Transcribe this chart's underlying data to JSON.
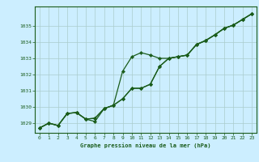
{
  "x": [
    0,
    1,
    2,
    3,
    4,
    5,
    6,
    7,
    8,
    9,
    10,
    11,
    12,
    13,
    14,
    15,
    16,
    17,
    18,
    19,
    20,
    21,
    22,
    23
  ],
  "line1": [
    1028.7,
    1029.0,
    1028.85,
    1029.6,
    1029.65,
    1029.25,
    1029.1,
    1029.9,
    1030.1,
    1030.5,
    1031.15,
    1031.15,
    1031.4,
    1032.5,
    1033.0,
    1033.1,
    1033.2,
    1033.85,
    1034.1,
    1034.45,
    1034.85,
    1035.05,
    1035.4,
    1035.75
  ],
  "line2": [
    1028.7,
    1029.0,
    1028.85,
    1029.6,
    1029.65,
    1029.25,
    1029.3,
    1029.9,
    1030.1,
    1032.2,
    1033.1,
    1033.35,
    1033.2,
    1033.0,
    1033.0,
    1033.1,
    1033.2,
    1033.85,
    1034.1,
    1034.45,
    1034.85,
    1035.05,
    1035.4,
    1035.75
  ],
  "line3": [
    1028.7,
    1029.0,
    1028.85,
    1029.6,
    1029.65,
    1029.25,
    1029.3,
    1029.9,
    1030.1,
    1030.5,
    1031.15,
    1031.15,
    1031.4,
    1032.5,
    1033.0,
    1033.1,
    1033.2,
    1033.85,
    1034.1,
    1034.45,
    1034.85,
    1035.05,
    1035.4,
    1035.75
  ],
  "line_color": "#1a5c1a",
  "bg_color": "#cceeff",
  "grid_color": "#aacccc",
  "title": "Graphe pression niveau de la mer (hPa)",
  "ylabel_ticks": [
    1029,
    1030,
    1031,
    1032,
    1033,
    1034,
    1035
  ],
  "xticks": [
    0,
    1,
    2,
    3,
    4,
    5,
    6,
    7,
    8,
    9,
    10,
    11,
    12,
    13,
    14,
    15,
    16,
    17,
    18,
    19,
    20,
    21,
    22,
    23
  ],
  "ylim": [
    1028.4,
    1036.2
  ],
  "xlim": [
    -0.5,
    23.5
  ]
}
